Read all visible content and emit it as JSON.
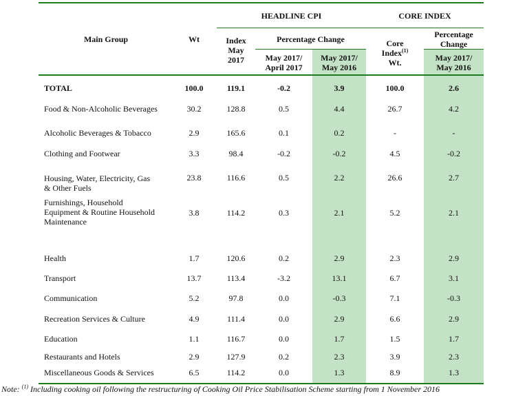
{
  "table": {
    "header": {
      "main_group": "Main Group",
      "wt": "Wt",
      "headline_cpi": "HEADLINE CPI",
      "core_index": "CORE INDEX",
      "index_may_2017": [
        "Index",
        "May",
        "2017"
      ],
      "percentage_change": "Percentage Change",
      "may2017_april2017": [
        "May 2017/",
        "April 2017"
      ],
      "may2017_may2016": [
        "May 2017/",
        "May 2016"
      ],
      "core_index_wt": [
        "Core",
        "Index",
        "(1)",
        "Wt."
      ],
      "core_percentage_change": [
        "Percentage",
        "Change"
      ],
      "core_may2017_may2016": [
        "May 2017/",
        "May 2016"
      ]
    },
    "rows": [
      {
        "label": [
          "TOTAL"
        ],
        "wt": "100.0",
        "index": "119.1",
        "mom": "-0.2",
        "yoy": "3.9",
        "core_wt": "100.0",
        "core_yoy": "2.6"
      },
      {
        "label": [
          "Food & Non-Alcoholic Beverages"
        ],
        "wt": "30.2",
        "index": "128.8",
        "mom": "0.5",
        "yoy": "4.4",
        "core_wt": "26.7",
        "core_yoy": "4.2"
      },
      {
        "label": [
          "Alcoholic Beverages & Tobacco"
        ],
        "wt": "2.9",
        "index": "165.6",
        "mom": "0.1",
        "yoy": "0.2",
        "core_wt": "-",
        "core_yoy": "-"
      },
      {
        "label": [
          "Clothing and Footwear"
        ],
        "wt": "3.3",
        "index": "98.4",
        "mom": "-0.2",
        "yoy": "-0.2",
        "core_wt": "4.5",
        "core_yoy": "-0.2"
      },
      {
        "label": [
          "Housing, Water, Electricity, Gas",
          "& Other Fuels"
        ],
        "wt": "23.8",
        "index": "116.6",
        "mom": "0.5",
        "yoy": "2.2",
        "core_wt": "26.6",
        "core_yoy": "2.7"
      },
      {
        "label": [
          "Furnishings, Household",
          "Equipment  & Routine Household",
          "Maintenance"
        ],
        "wt": "3.8",
        "index": "114.2",
        "mom": "0.3",
        "yoy": "2.1",
        "core_wt": "5.2",
        "core_yoy": "2.1"
      },
      {
        "label": [
          "Health"
        ],
        "wt": "1.7",
        "index": "120.6",
        "mom": "0.2",
        "yoy": "2.9",
        "core_wt": "2.3",
        "core_yoy": "2.9"
      },
      {
        "label": [
          "Transport"
        ],
        "wt": "13.7",
        "index": "113.4",
        "mom": "-3.2",
        "yoy": "13.1",
        "core_wt": "6.7",
        "core_yoy": "3.1"
      },
      {
        "label": [
          "Communication"
        ],
        "wt": "5.2",
        "index": "97.8",
        "mom": "0.0",
        "yoy": "-0.3",
        "core_wt": "7.1",
        "core_yoy": "-0.3"
      },
      {
        "label": [
          "Recreation Services & Culture"
        ],
        "wt": "4.9",
        "index": "111.4",
        "mom": "0.0",
        "yoy": "2.9",
        "core_wt": "6.6",
        "core_yoy": "2.9"
      },
      {
        "label": [
          "Education"
        ],
        "wt": "1.1",
        "index": "116.7",
        "mom": "0.0",
        "yoy": "1.7",
        "core_wt": "1.5",
        "core_yoy": "1.7"
      },
      {
        "label": [
          "Restaurants and Hotels"
        ],
        "wt": "2.9",
        "index": "127.9",
        "mom": "0.2",
        "yoy": "2.3",
        "core_wt": "3.9",
        "core_yoy": "2.3"
      },
      {
        "label": [
          "Miscellaneous Goods & Services"
        ],
        "wt": "6.5",
        "index": "114.2",
        "mom": "0.0",
        "yoy": "1.3",
        "core_wt": "8.9",
        "core_yoy": "1.3"
      }
    ]
  },
  "note": {
    "prefix": "Note: ",
    "marker": "(1)",
    "text": " Including cooking oil following the restructuring of Cooking Oil Price Stabilisation Scheme starting from 1 November 2016"
  },
  "colors": {
    "rule": "#1e7a1e",
    "highlight": "#c4e2c5"
  }
}
